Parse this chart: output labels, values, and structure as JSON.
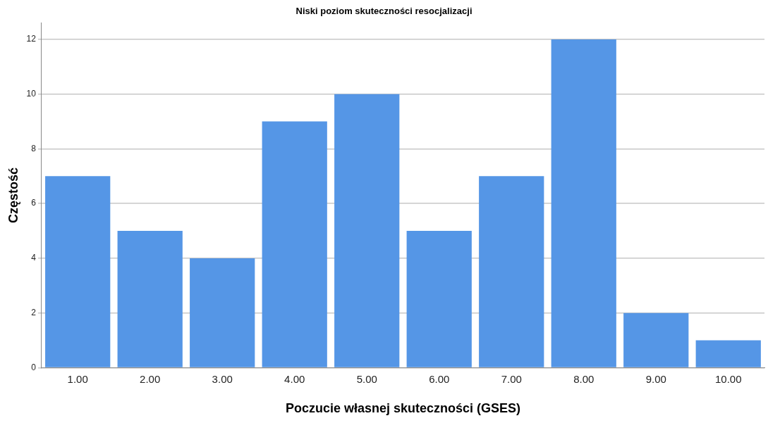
{
  "chart_data": {
    "type": "bar",
    "title": "Niski poziom skuteczności resocjalizacji",
    "xlabel": "Poczucie własnej skuteczności (GSES)",
    "ylabel": "Częstość",
    "categories": [
      "1.00",
      "2.00",
      "3.00",
      "4.00",
      "5.00",
      "6.00",
      "7.00",
      "8.00",
      "9.00",
      "10.00"
    ],
    "values": [
      7,
      5,
      4,
      9,
      10,
      5,
      7,
      12,
      2,
      1
    ],
    "color": "#5596e6",
    "ylim": [
      0,
      12.6
    ],
    "yticks": [
      0,
      2,
      4,
      6,
      8,
      10,
      12
    ],
    "grid": "y",
    "legend": false
  }
}
